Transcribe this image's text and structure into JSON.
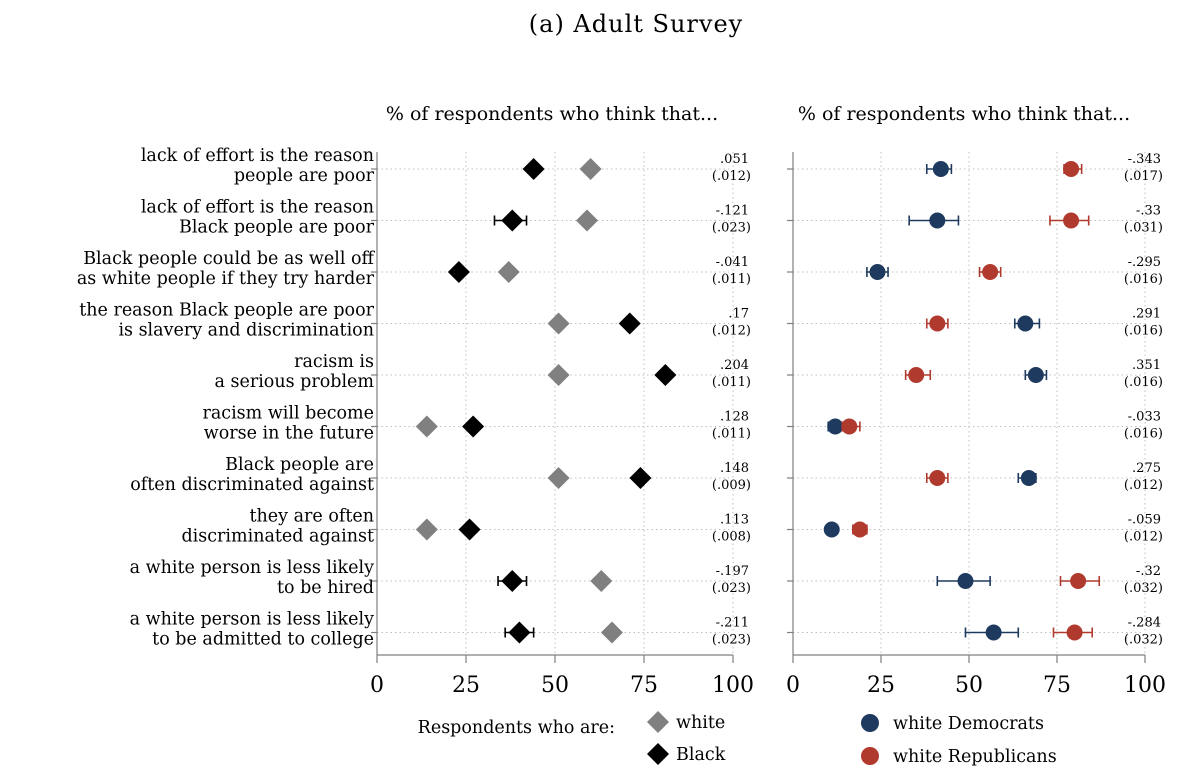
{
  "chart_data": {
    "title": "(a) Adult Survey",
    "type": "scatter",
    "rows": [
      {
        "label": [
          "lack of effort is the reason",
          "people are poor"
        ]
      },
      {
        "label": [
          "lack of effort is the reason",
          "Black people are poor"
        ]
      },
      {
        "label": [
          "Black people could be as well off",
          "as white people if they try harder"
        ]
      },
      {
        "label": [
          "the reason Black people are poor",
          "is slavery and discrimination"
        ]
      },
      {
        "label": [
          "racism is",
          "a serious problem"
        ]
      },
      {
        "label": [
          "racism will become",
          "worse in the future"
        ]
      },
      {
        "label": [
          "Black people are",
          "often discriminated against"
        ]
      },
      {
        "label": [
          "they are often",
          "discriminated against"
        ]
      },
      {
        "label": [
          "a white person is less likely",
          "to be hired"
        ]
      },
      {
        "label": [
          "a white person is less likely",
          "to be admitted to college"
        ]
      }
    ],
    "panels": [
      {
        "subtitle": "% of respondents who think that...",
        "xlim": [
          0,
          100
        ],
        "xticks": [
          "0",
          "25",
          "50",
          "75",
          "100"
        ],
        "legend_title": "Respondents who are:",
        "series": [
          {
            "name": "white",
            "marker": "diamond",
            "color": "#808080",
            "values": [
              60,
              59,
              37,
              51,
              51,
              14,
              51,
              14,
              63,
              66
            ],
            "err_lo": [
              null,
              null,
              null,
              null,
              null,
              null,
              null,
              null,
              null,
              null
            ],
            "err_hi": [
              null,
              null,
              null,
              null,
              null,
              null,
              null,
              null,
              null,
              null
            ]
          },
          {
            "name": "Black",
            "marker": "diamond",
            "color": "#000000",
            "values": [
              44,
              38,
              23,
              71,
              81,
              27,
              74,
              26,
              38,
              40
            ],
            "err_lo": [
              null,
              33,
              null,
              null,
              null,
              null,
              null,
              null,
              34,
              36
            ],
            "err_hi": [
              null,
              42,
              null,
              null,
              null,
              null,
              null,
              null,
              42,
              44
            ]
          }
        ],
        "coefficients": [
          ".051",
          "-.121",
          "-.041",
          ".17",
          ".204",
          ".128",
          ".148",
          ".113",
          "-.197",
          "-.211"
        ],
        "std_errors": [
          "(.012)",
          "(.023)",
          "(.011)",
          "(.012)",
          "(.011)",
          "(.011)",
          "(.009)",
          "(.008)",
          "(.023)",
          "(.023)"
        ]
      },
      {
        "subtitle": "% of respondents who think that...",
        "xlim": [
          0,
          100
        ],
        "xticks": [
          "0",
          "25",
          "50",
          "75",
          "100"
        ],
        "legend_title": "",
        "series": [
          {
            "name": "white Democrats",
            "marker": "circle",
            "color": "#1f3a5f",
            "values": [
              42,
              41,
              24,
              66,
              69,
              12,
              67,
              11,
              49,
              57
            ],
            "err_lo": [
              38,
              33,
              21,
              63,
              66,
              10,
              64,
              10,
              41,
              49
            ],
            "err_hi": [
              45,
              47,
              27,
              70,
              72,
              14,
              69,
              12,
              56,
              64
            ]
          },
          {
            "name": "white Republicans",
            "marker": "circle",
            "color": "#b03a2e",
            "values": [
              79,
              79,
              56,
              41,
              35,
              16,
              41,
              19,
              81,
              80
            ],
            "err_lo": [
              77,
              73,
              53,
              38,
              32,
              14,
              38,
              17,
              76,
              74
            ],
            "err_hi": [
              82,
              84,
              59,
              44,
              39,
              19,
              44,
              21,
              87,
              85
            ]
          }
        ],
        "coefficients": [
          "-.343",
          "-.33",
          "-.295",
          ".291",
          ".351",
          "-.033",
          ".275",
          "-.059",
          "-.32",
          "-.284"
        ],
        "std_errors": [
          "(.017)",
          "(.031)",
          "(.016)",
          "(.016)",
          "(.016)",
          "(.016)",
          "(.012)",
          "(.012)",
          "(.032)",
          "(.032)"
        ]
      }
    ]
  }
}
